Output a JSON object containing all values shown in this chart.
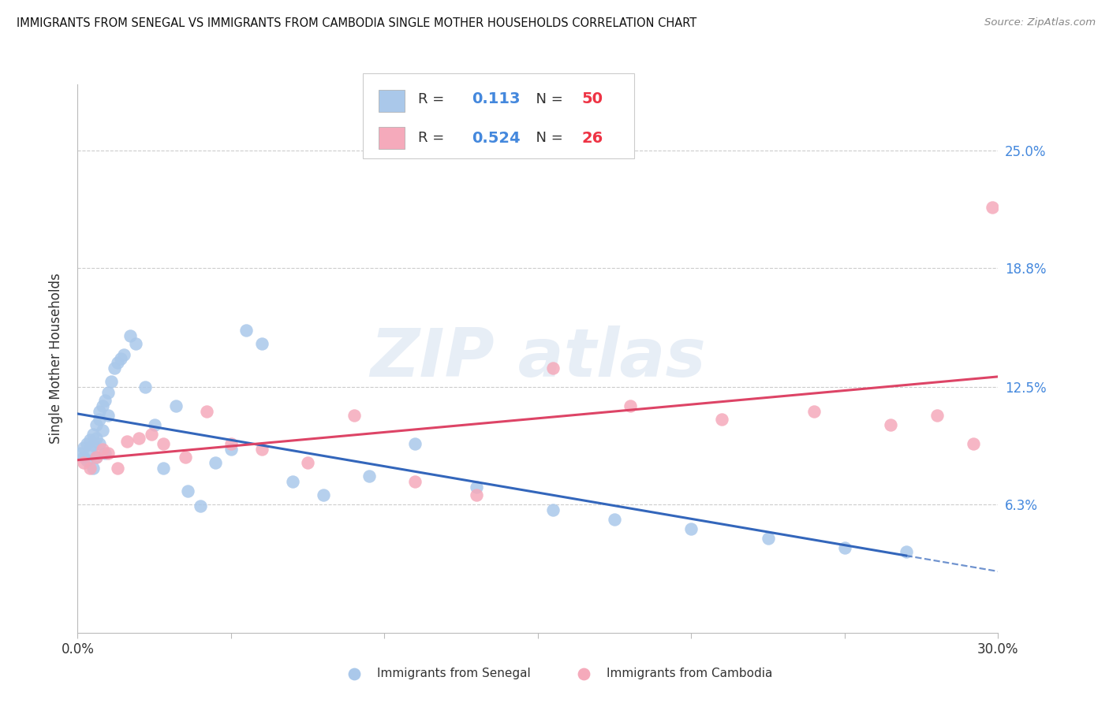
{
  "title": "IMMIGRANTS FROM SENEGAL VS IMMIGRANTS FROM CAMBODIA SINGLE MOTHER HOUSEHOLDS CORRELATION CHART",
  "source": "Source: ZipAtlas.com",
  "ylabel": "Single Mother Households",
  "ytick_values": [
    0.063,
    0.125,
    0.188,
    0.25
  ],
  "ytick_labels": [
    "6.3%",
    "12.5%",
    "18.8%",
    "25.0%"
  ],
  "xlim": [
    0.0,
    0.3
  ],
  "ylim": [
    -0.005,
    0.285
  ],
  "watermark": "ZIPatlas",
  "senegal_R": "0.113",
  "senegal_N": "50",
  "cambodia_R": "0.524",
  "cambodia_N": "26",
  "senegal_color": "#aac8ea",
  "cambodia_color": "#f5aabb",
  "senegal_line_color": "#3366bb",
  "cambodia_line_color": "#dd4466",
  "R_color": "#4488dd",
  "N_color": "#ee3344",
  "text_color": "#333333",
  "background_color": "#ffffff",
  "grid_color": "#cccccc",
  "senegal_x": [
    0.001,
    0.002,
    0.002,
    0.003,
    0.003,
    0.004,
    0.004,
    0.005,
    0.005,
    0.005,
    0.006,
    0.006,
    0.006,
    0.007,
    0.007,
    0.007,
    0.008,
    0.008,
    0.009,
    0.009,
    0.01,
    0.01,
    0.011,
    0.012,
    0.013,
    0.014,
    0.015,
    0.017,
    0.019,
    0.022,
    0.025,
    0.028,
    0.032,
    0.036,
    0.04,
    0.045,
    0.05,
    0.055,
    0.06,
    0.07,
    0.08,
    0.095,
    0.11,
    0.13,
    0.155,
    0.175,
    0.2,
    0.225,
    0.25,
    0.27
  ],
  "senegal_y": [
    0.09,
    0.088,
    0.093,
    0.086,
    0.095,
    0.092,
    0.097,
    0.1,
    0.094,
    0.082,
    0.098,
    0.105,
    0.088,
    0.112,
    0.108,
    0.095,
    0.115,
    0.102,
    0.118,
    0.09,
    0.122,
    0.11,
    0.128,
    0.135,
    0.138,
    0.14,
    0.142,
    0.152,
    0.148,
    0.125,
    0.105,
    0.082,
    0.115,
    0.07,
    0.062,
    0.085,
    0.092,
    0.155,
    0.148,
    0.075,
    0.068,
    0.078,
    0.095,
    0.072,
    0.06,
    0.055,
    0.05,
    0.045,
    0.04,
    0.038
  ],
  "cambodia_x": [
    0.002,
    0.004,
    0.006,
    0.008,
    0.01,
    0.013,
    0.016,
    0.02,
    0.024,
    0.028,
    0.035,
    0.042,
    0.05,
    0.06,
    0.075,
    0.09,
    0.11,
    0.13,
    0.155,
    0.18,
    0.21,
    0.24,
    0.265,
    0.28,
    0.292,
    0.298
  ],
  "cambodia_y": [
    0.085,
    0.082,
    0.088,
    0.092,
    0.09,
    0.082,
    0.096,
    0.098,
    0.1,
    0.095,
    0.088,
    0.112,
    0.095,
    0.092,
    0.085,
    0.11,
    0.075,
    0.068,
    0.135,
    0.115,
    0.108,
    0.112,
    0.105,
    0.11,
    0.095,
    0.22
  ]
}
